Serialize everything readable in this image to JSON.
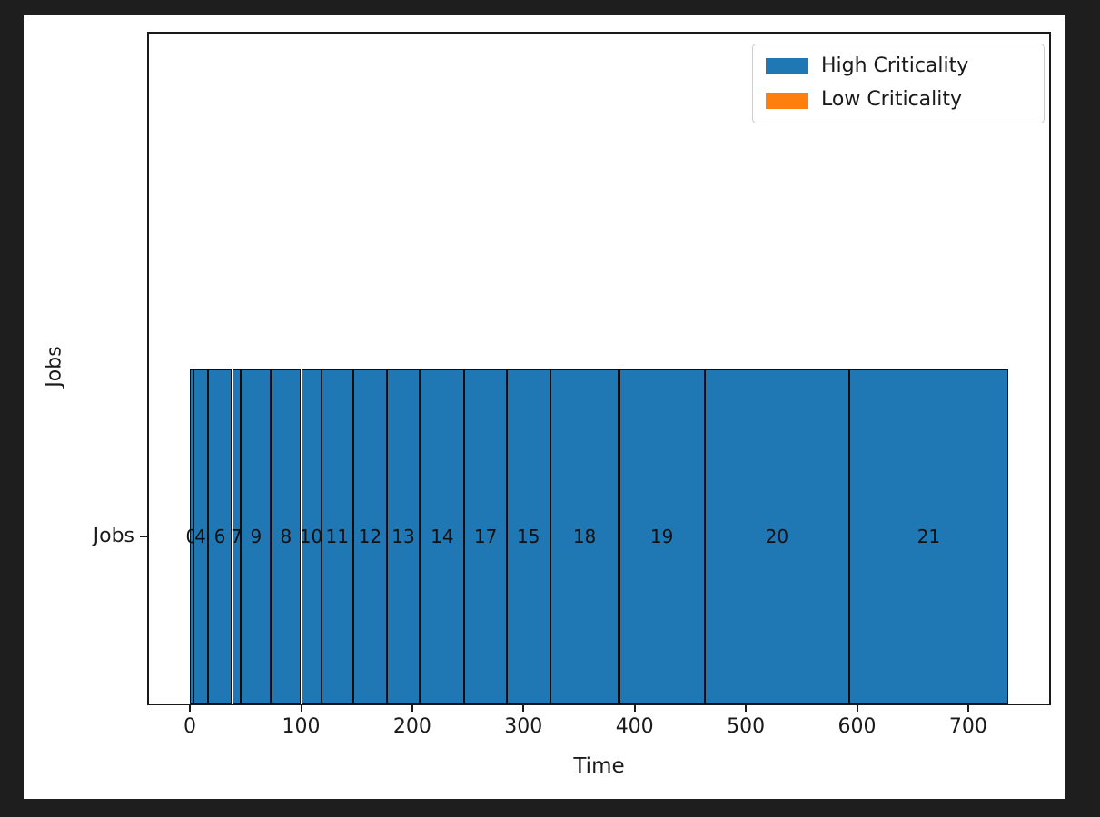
{
  "window": {
    "background_color": "#1e1e1e",
    "figure_background_color": "#ffffff"
  },
  "chart_data": {
    "type": "bar",
    "subtype": "gantt-schedule",
    "title": "",
    "xlabel": "Time",
    "ylabel": "Jobs",
    "y_tick_label": "Jobs",
    "x_ticks": [
      0,
      100,
      200,
      300,
      400,
      500,
      600,
      700
    ],
    "xlim": [
      -36.8,
      772.8
    ],
    "grid": false,
    "legend_position": "upper right",
    "legend": [
      {
        "label": "High Criticality",
        "color": "#1f77b4"
      },
      {
        "label": "Low Criticality",
        "color": "#ff7f0e"
      }
    ],
    "criticality_colors": {
      "high": "#1f77b4",
      "low": "#ff7f0e"
    },
    "bar_edge_color": "#0d0d0d",
    "jobs": [
      {
        "id": "0",
        "start": 0,
        "end": 3,
        "criticality": "high"
      },
      {
        "id": "4",
        "start": 3,
        "end": 16,
        "criticality": "high"
      },
      {
        "id": "6",
        "start": 16,
        "end": 38,
        "criticality": "high"
      },
      {
        "id": "7",
        "start": 38,
        "end": 46,
        "criticality": "high"
      },
      {
        "id": "9",
        "start": 46,
        "end": 73,
        "criticality": "high"
      },
      {
        "id": "8",
        "start": 73,
        "end": 100,
        "criticality": "high"
      },
      {
        "id": "10",
        "start": 100,
        "end": 118,
        "criticality": "high"
      },
      {
        "id": "11",
        "start": 118,
        "end": 147,
        "criticality": "high"
      },
      {
        "id": "12",
        "start": 147,
        "end": 177,
        "criticality": "high"
      },
      {
        "id": "13",
        "start": 177,
        "end": 207,
        "criticality": "high"
      },
      {
        "id": "14",
        "start": 207,
        "end": 247,
        "criticality": "high"
      },
      {
        "id": "17",
        "start": 247,
        "end": 285,
        "criticality": "high"
      },
      {
        "id": "15",
        "start": 285,
        "end": 324,
        "criticality": "high"
      },
      {
        "id": "18",
        "start": 324,
        "end": 386,
        "criticality": "high"
      },
      {
        "id": "19",
        "start": 386,
        "end": 463,
        "criticality": "high"
      },
      {
        "id": "20",
        "start": 463,
        "end": 593,
        "criticality": "high"
      },
      {
        "id": "21",
        "start": 593,
        "end": 736,
        "criticality": "high"
      }
    ]
  }
}
